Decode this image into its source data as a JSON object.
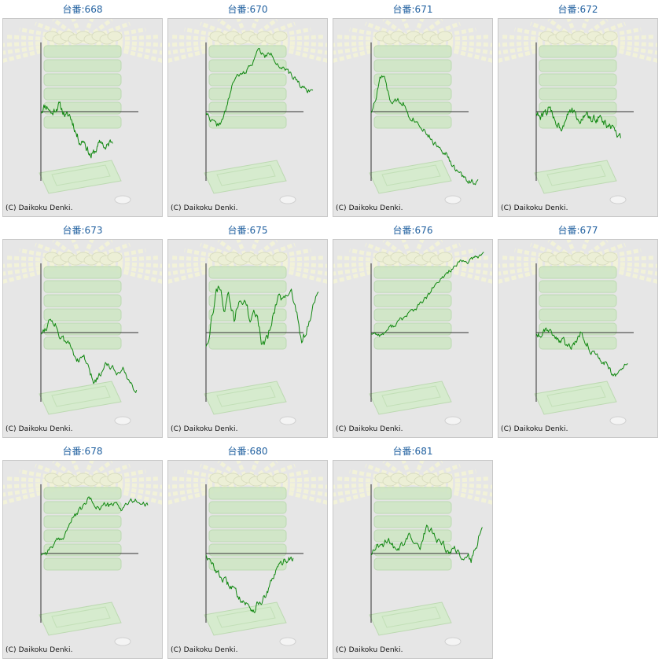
{
  "colors": {
    "line": "#118811",
    "axis": "#333333",
    "title": "#1f5f9f",
    "panel": "#e6e6e6"
  },
  "copyright": "(C) Daikoku Denki.",
  "chart_data": [
    {
      "type": "line",
      "title": "台番:668",
      "key": [
        [
          0,
          0
        ],
        [
          0.05,
          0.05
        ],
        [
          0.1,
          0.04
        ],
        [
          0.15,
          -0.02
        ],
        [
          0.2,
          0.02
        ],
        [
          0.25,
          0.06
        ],
        [
          0.3,
          0.01
        ],
        [
          0.35,
          -0.04
        ],
        [
          0.4,
          -0.03
        ],
        [
          0.45,
          -0.1
        ],
        [
          0.5,
          -0.2
        ],
        [
          0.55,
          -0.26
        ],
        [
          0.6,
          -0.24
        ],
        [
          0.65,
          -0.32
        ],
        [
          0.7,
          -0.38
        ],
        [
          0.75,
          -0.34
        ],
        [
          0.8,
          -0.29
        ],
        [
          0.85,
          -0.25
        ],
        [
          0.9,
          -0.32
        ],
        [
          0.95,
          -0.27
        ],
        [
          1,
          -0.24
        ]
      ],
      "n": 120,
      "seed": 11,
      "noise": 0.055,
      "xExtent": 0.51
    },
    {
      "type": "line",
      "title": "台番:670",
      "key": [
        [
          0,
          0
        ],
        [
          0.05,
          -0.07
        ],
        [
          0.1,
          -0.12
        ],
        [
          0.15,
          -0.08
        ],
        [
          0.2,
          0.05
        ],
        [
          0.25,
          0.25
        ],
        [
          0.3,
          0.3
        ],
        [
          0.35,
          0.32
        ],
        [
          0.4,
          0.37
        ],
        [
          0.45,
          0.45
        ],
        [
          0.5,
          0.53
        ],
        [
          0.55,
          0.46
        ],
        [
          0.6,
          0.5
        ],
        [
          0.65,
          0.44
        ],
        [
          0.7,
          0.38
        ],
        [
          0.75,
          0.34
        ],
        [
          0.8,
          0.3
        ],
        [
          0.85,
          0.27
        ],
        [
          0.9,
          0.21
        ],
        [
          0.95,
          0.19
        ],
        [
          1,
          0.18
        ]
      ],
      "n": 120,
      "seed": 22,
      "noise": 0.04,
      "xExtent": 0.76
    },
    {
      "type": "line",
      "title": "台番:671",
      "key": [
        [
          0,
          0
        ],
        [
          0.05,
          0.12
        ],
        [
          0.08,
          0.28
        ],
        [
          0.12,
          0.3
        ],
        [
          0.15,
          0.18
        ],
        [
          0.2,
          0.05
        ],
        [
          0.25,
          0.1
        ],
        [
          0.3,
          0.08
        ],
        [
          0.35,
          -0.02
        ],
        [
          0.4,
          -0.06
        ],
        [
          0.45,
          -0.1
        ],
        [
          0.5,
          -0.15
        ],
        [
          0.55,
          -0.22
        ],
        [
          0.6,
          -0.28
        ],
        [
          0.65,
          -0.3
        ],
        [
          0.7,
          -0.35
        ],
        [
          0.75,
          -0.45
        ],
        [
          0.8,
          -0.5
        ],
        [
          0.85,
          -0.55
        ],
        [
          0.9,
          -0.58
        ],
        [
          1,
          -0.6
        ]
      ],
      "n": 120,
      "seed": 33,
      "noise": 0.045,
      "xExtent": 0.76
    },
    {
      "type": "line",
      "title": "台番:672",
      "key": [
        [
          0,
          0
        ],
        [
          0.05,
          -0.06
        ],
        [
          0.1,
          -0.02
        ],
        [
          0.15,
          0.03
        ],
        [
          0.2,
          -0.04
        ],
        [
          0.25,
          -0.1
        ],
        [
          0.3,
          -0.14
        ],
        [
          0.35,
          -0.04
        ],
        [
          0.4,
          0.04
        ],
        [
          0.45,
          -0.02
        ],
        [
          0.5,
          -0.1
        ],
        [
          0.55,
          -0.05
        ],
        [
          0.6,
          -0.02
        ],
        [
          0.65,
          -0.08
        ],
        [
          0.7,
          -0.06
        ],
        [
          0.75,
          -0.04
        ],
        [
          0.8,
          -0.1
        ],
        [
          0.85,
          -0.12
        ],
        [
          0.9,
          -0.14
        ],
        [
          0.95,
          -0.2
        ],
        [
          1,
          -0.24
        ]
      ],
      "n": 120,
      "seed": 44,
      "noise": 0.06,
      "xExtent": 0.6
    },
    {
      "type": "line",
      "title": "台番:673",
      "key": [
        [
          0,
          0
        ],
        [
          0.05,
          0.04
        ],
        [
          0.1,
          0.12
        ],
        [
          0.15,
          0.08
        ],
        [
          0.2,
          -0.04
        ],
        [
          0.25,
          -0.08
        ],
        [
          0.3,
          -0.1
        ],
        [
          0.35,
          -0.18
        ],
        [
          0.4,
          -0.25
        ],
        [
          0.45,
          -0.2
        ],
        [
          0.5,
          -0.32
        ],
        [
          0.55,
          -0.42
        ],
        [
          0.6,
          -0.38
        ],
        [
          0.65,
          -0.3
        ],
        [
          0.7,
          -0.25
        ],
        [
          0.75,
          -0.3
        ],
        [
          0.8,
          -0.34
        ],
        [
          0.85,
          -0.28
        ],
        [
          0.9,
          -0.38
        ],
        [
          0.95,
          -0.45
        ],
        [
          1,
          -0.48
        ]
      ],
      "n": 120,
      "seed": 55,
      "noise": 0.05,
      "xExtent": 0.68
    },
    {
      "type": "line",
      "title": "台番:675",
      "key": [
        [
          0,
          -0.1
        ],
        [
          0.04,
          0.05
        ],
        [
          0.08,
          0.3
        ],
        [
          0.12,
          0.42
        ],
        [
          0.16,
          0.22
        ],
        [
          0.2,
          0.3
        ],
        [
          0.25,
          0.1
        ],
        [
          0.3,
          0.3
        ],
        [
          0.35,
          0.25
        ],
        [
          0.4,
          0.08
        ],
        [
          0.45,
          0.18
        ],
        [
          0.5,
          -0.1
        ],
        [
          0.55,
          -0.05
        ],
        [
          0.6,
          0.15
        ],
        [
          0.65,
          0.32
        ],
        [
          0.7,
          0.25
        ],
        [
          0.75,
          0.4
        ],
        [
          0.8,
          0.22
        ],
        [
          0.85,
          -0.12
        ],
        [
          0.9,
          0.05
        ],
        [
          0.95,
          0.2
        ],
        [
          1,
          0.38
        ]
      ],
      "n": 120,
      "seed": 66,
      "noise": 0.08,
      "xExtent": 0.8
    },
    {
      "type": "line",
      "title": "台番:676",
      "key": [
        [
          0,
          0
        ],
        [
          0.05,
          -0.01
        ],
        [
          0.1,
          -0.02
        ],
        [
          0.15,
          0.03
        ],
        [
          0.2,
          0.06
        ],
        [
          0.25,
          0.1
        ],
        [
          0.3,
          0.13
        ],
        [
          0.35,
          0.18
        ],
        [
          0.4,
          0.2
        ],
        [
          0.45,
          0.26
        ],
        [
          0.5,
          0.3
        ],
        [
          0.55,
          0.38
        ],
        [
          0.6,
          0.42
        ],
        [
          0.65,
          0.48
        ],
        [
          0.7,
          0.53
        ],
        [
          0.75,
          0.56
        ],
        [
          0.8,
          0.6
        ],
        [
          0.85,
          0.6
        ],
        [
          0.9,
          0.62
        ],
        [
          0.95,
          0.64
        ],
        [
          1,
          0.68
        ]
      ],
      "n": 120,
      "seed": 77,
      "noise": 0.035,
      "xExtent": 0.8
    },
    {
      "type": "line",
      "title": "台番:677",
      "key": [
        [
          0,
          0
        ],
        [
          0.05,
          -0.02
        ],
        [
          0.1,
          0.04
        ],
        [
          0.15,
          0.02
        ],
        [
          0.2,
          -0.02
        ],
        [
          0.25,
          -0.06
        ],
        [
          0.3,
          -0.08
        ],
        [
          0.35,
          -0.12
        ],
        [
          0.4,
          -0.1
        ],
        [
          0.45,
          -0.06
        ],
        [
          0.5,
          0.02
        ],
        [
          0.55,
          -0.08
        ],
        [
          0.6,
          -0.16
        ],
        [
          0.65,
          -0.2
        ],
        [
          0.7,
          -0.24
        ],
        [
          0.75,
          -0.25
        ],
        [
          0.8,
          -0.32
        ],
        [
          0.85,
          -0.36
        ],
        [
          0.9,
          -0.34
        ],
        [
          0.95,
          -0.3
        ],
        [
          1,
          -0.3
        ]
      ],
      "n": 120,
      "seed": 88,
      "noise": 0.05,
      "xExtent": 0.65
    },
    {
      "type": "line",
      "title": "台番:678",
      "key": [
        [
          0,
          0
        ],
        [
          0.05,
          0.01
        ],
        [
          0.1,
          0.06
        ],
        [
          0.15,
          0.1
        ],
        [
          0.2,
          0.12
        ],
        [
          0.25,
          0.22
        ],
        [
          0.3,
          0.3
        ],
        [
          0.35,
          0.35
        ],
        [
          0.4,
          0.4
        ],
        [
          0.45,
          0.47
        ],
        [
          0.5,
          0.42
        ],
        [
          0.55,
          0.38
        ],
        [
          0.6,
          0.42
        ],
        [
          0.65,
          0.4
        ],
        [
          0.7,
          0.42
        ],
        [
          0.75,
          0.38
        ],
        [
          0.8,
          0.42
        ],
        [
          0.85,
          0.44
        ],
        [
          0.9,
          0.45
        ],
        [
          0.95,
          0.42
        ],
        [
          1,
          0.4
        ]
      ],
      "n": 120,
      "seed": 99,
      "noise": 0.04,
      "xExtent": 0.76
    },
    {
      "type": "line",
      "title": "台番:680",
      "key": [
        [
          0,
          0
        ],
        [
          0.05,
          -0.08
        ],
        [
          0.1,
          -0.12
        ],
        [
          0.15,
          -0.18
        ],
        [
          0.2,
          -0.22
        ],
        [
          0.25,
          -0.26
        ],
        [
          0.3,
          -0.28
        ],
        [
          0.35,
          -0.34
        ],
        [
          0.4,
          -0.38
        ],
        [
          0.45,
          -0.42
        ],
        [
          0.5,
          -0.45
        ],
        [
          0.55,
          -0.48
        ],
        [
          0.6,
          -0.42
        ],
        [
          0.65,
          -0.4
        ],
        [
          0.7,
          -0.34
        ],
        [
          0.75,
          -0.25
        ],
        [
          0.8,
          -0.15
        ],
        [
          0.85,
          -0.1
        ],
        [
          0.9,
          -0.06
        ],
        [
          0.95,
          -0.04
        ],
        [
          1,
          -0.04
        ]
      ],
      "n": 120,
      "seed": 110,
      "noise": 0.05,
      "xExtent": 0.62
    },
    {
      "type": "line",
      "title": "台番:681",
      "key": [
        [
          0,
          0
        ],
        [
          0.05,
          0.1
        ],
        [
          0.1,
          0.06
        ],
        [
          0.15,
          0.12
        ],
        [
          0.2,
          0.05
        ],
        [
          0.25,
          0.02
        ],
        [
          0.3,
          0.1
        ],
        [
          0.35,
          0.16
        ],
        [
          0.4,
          0.12
        ],
        [
          0.45,
          0.08
        ],
        [
          0.5,
          0.25
        ],
        [
          0.55,
          0.18
        ],
        [
          0.6,
          0.1
        ],
        [
          0.65,
          0.08
        ],
        [
          0.7,
          0.02
        ],
        [
          0.75,
          0.05
        ],
        [
          0.8,
          -0.02
        ],
        [
          0.85,
          0.0
        ],
        [
          0.9,
          -0.05
        ],
        [
          0.95,
          0.08
        ],
        [
          1,
          0.25
        ]
      ],
      "n": 120,
      "seed": 121,
      "noise": 0.06,
      "xExtent": 0.79
    }
  ]
}
